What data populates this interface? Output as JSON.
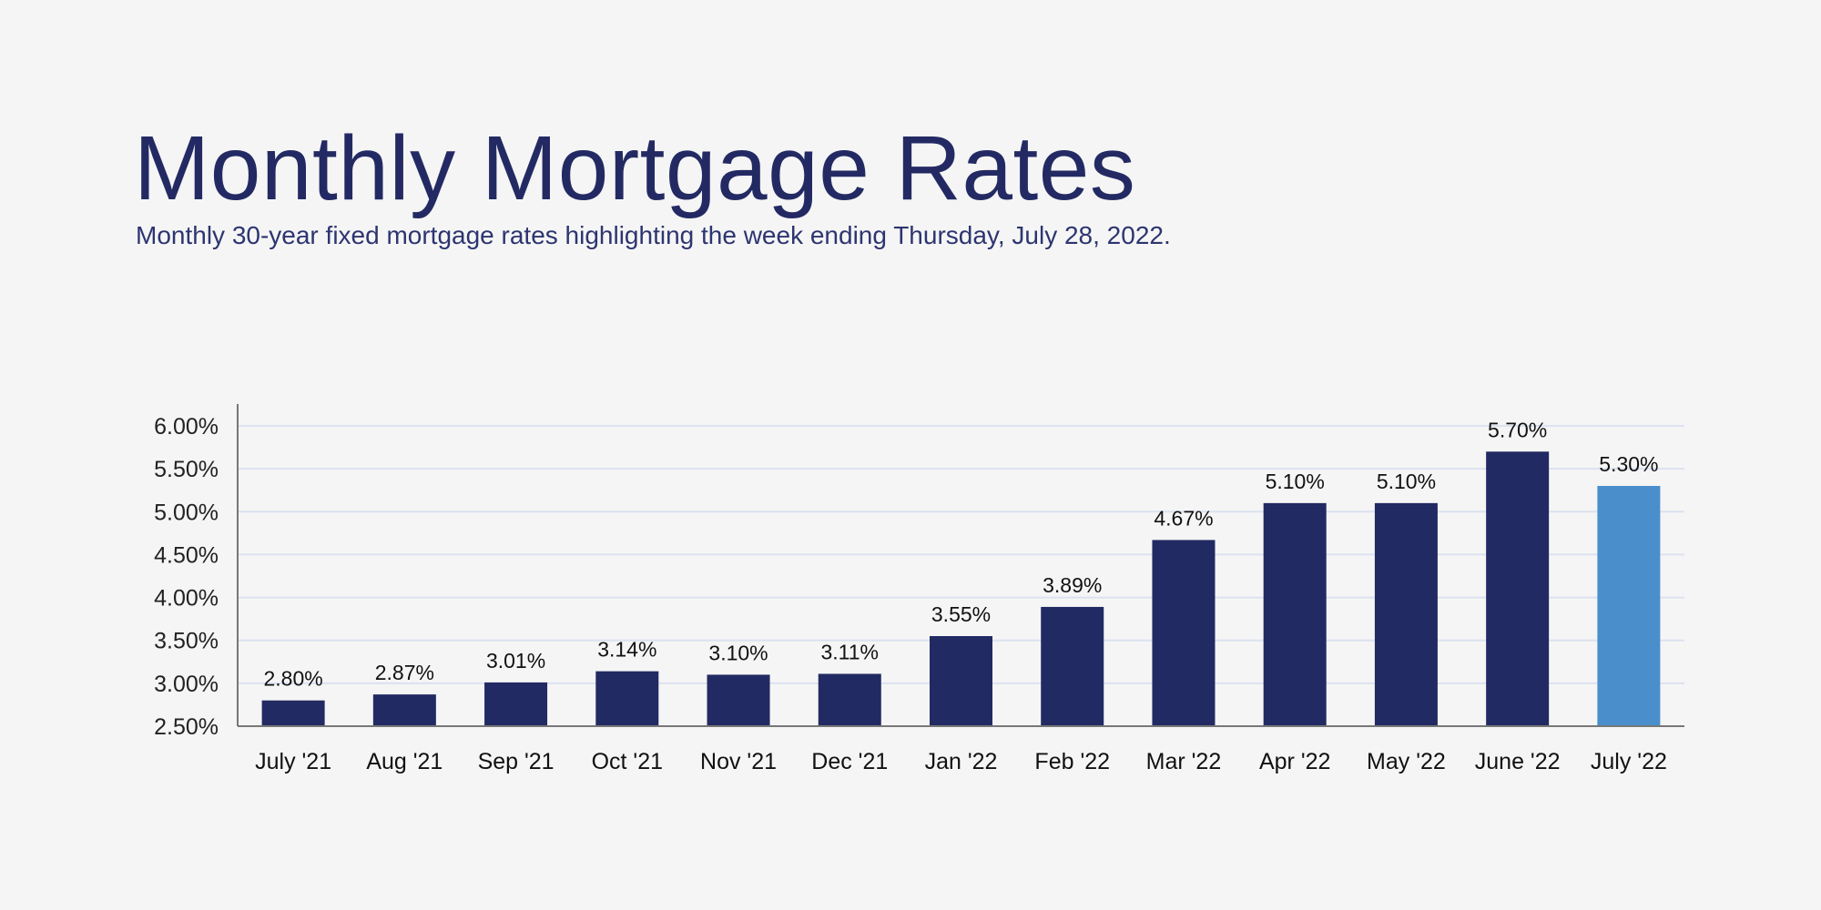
{
  "title": "Monthly Mortgage Rates",
  "subtitle": "Monthly 30-year fixed mortgage rates highlighting the week ending Thursday, July 28, 2022.",
  "colors": {
    "bar": "#222a63",
    "highlight": "#4a8fcc",
    "grid": "#dde2f0",
    "title": "#232a63"
  },
  "chart_data": {
    "type": "bar",
    "title": "Monthly Mortgage Rates",
    "subtitle": "Monthly 30-year fixed mortgage rates highlighting the week ending Thursday, July 28, 2022.",
    "xlabel": "",
    "ylabel": "",
    "categories": [
      "July '21",
      "Aug '21",
      "Sep '21",
      "Oct '21",
      "Nov '21",
      "Dec '21",
      "Jan '22",
      "Feb '22",
      "Mar '22",
      "Apr '22",
      "May '22",
      "June '22",
      "July '22"
    ],
    "values": [
      2.8,
      2.87,
      3.01,
      3.14,
      3.1,
      3.11,
      3.55,
      3.89,
      4.67,
      5.1,
      5.1,
      5.7,
      5.3
    ],
    "data_labels": [
      "2.80%",
      "2.87%",
      "3.01%",
      "3.14%",
      "3.10%",
      "3.11%",
      "3.55%",
      "3.89%",
      "4.67%",
      "5.10%",
      "5.10%",
      "5.70%",
      "5.30%"
    ],
    "highlighted_category": "July '22",
    "ylim": [
      2.5,
      6.0
    ],
    "yticks": [
      2.5,
      3.0,
      3.5,
      4.0,
      4.5,
      5.0,
      5.5,
      6.0
    ],
    "ytick_labels": [
      "2.50%",
      "3.00%",
      "3.50%",
      "4.00%",
      "4.50%",
      "5.00%",
      "5.50%",
      "6.00%"
    ],
    "grid": true,
    "legend": "none"
  }
}
